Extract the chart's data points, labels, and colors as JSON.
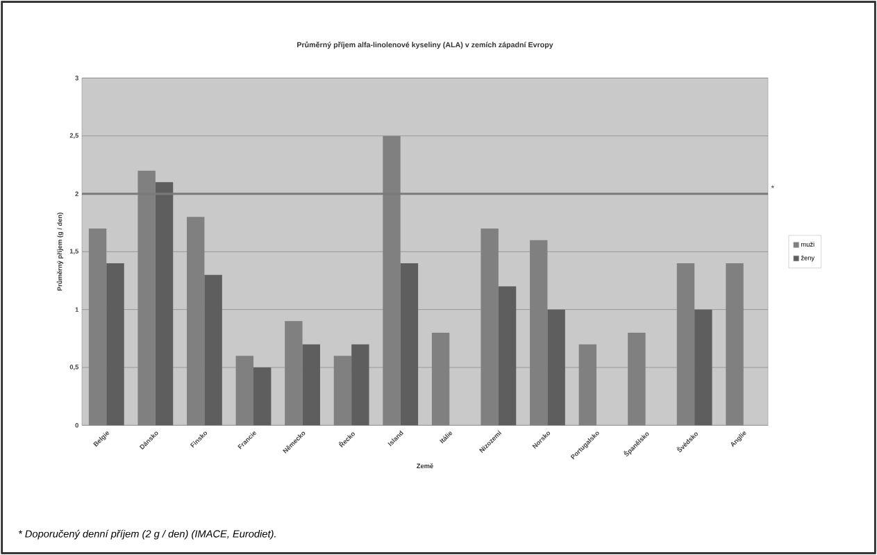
{
  "chart_data": {
    "type": "bar",
    "title": "Průměrný příjem alfa-linolenové kyseliny (ALA) v zemích západní Evropy",
    "xlabel": "Země",
    "ylabel": "Průměrný příjem (g / den)",
    "categories": [
      "Belgie",
      "Dánsko",
      "Finsko",
      "Francie",
      "Německo",
      "Řecko",
      "Island",
      "Itálie",
      "Nizozemí",
      "Norsko",
      "Portugalsko",
      "Španělsko",
      "Švédsko",
      "Anglie"
    ],
    "series": [
      {
        "name": "muži",
        "color": "#808080",
        "values": [
          1.7,
          2.2,
          1.8,
          0.6,
          0.9,
          0.6,
          2.5,
          0.8,
          1.7,
          1.6,
          0.7,
          0.8,
          1.4,
          1.4
        ]
      },
      {
        "name": "ženy",
        "color": "#5e5e5e",
        "values": [
          1.4,
          2.1,
          1.3,
          0.5,
          0.7,
          0.7,
          1.4,
          null,
          1.2,
          1.0,
          null,
          null,
          1.0,
          null
        ]
      }
    ],
    "ylim": [
      0,
      3
    ],
    "yticks": [
      0,
      {
        "value": 0.5,
        "label": "0,5"
      },
      1,
      {
        "value": 1.5,
        "label": "1,5"
      },
      2,
      {
        "value": 2.5,
        "label": "2,5"
      },
      3
    ],
    "ref_lines": [
      {
        "axis": "y",
        "value": 2,
        "label": "*",
        "color": "#7a7a7a"
      }
    ],
    "annotations": [
      "* Doporučený denní příjem (2 g / den) (IMACE, Eurodiet)."
    ],
    "grid": "y",
    "legend": "right"
  }
}
